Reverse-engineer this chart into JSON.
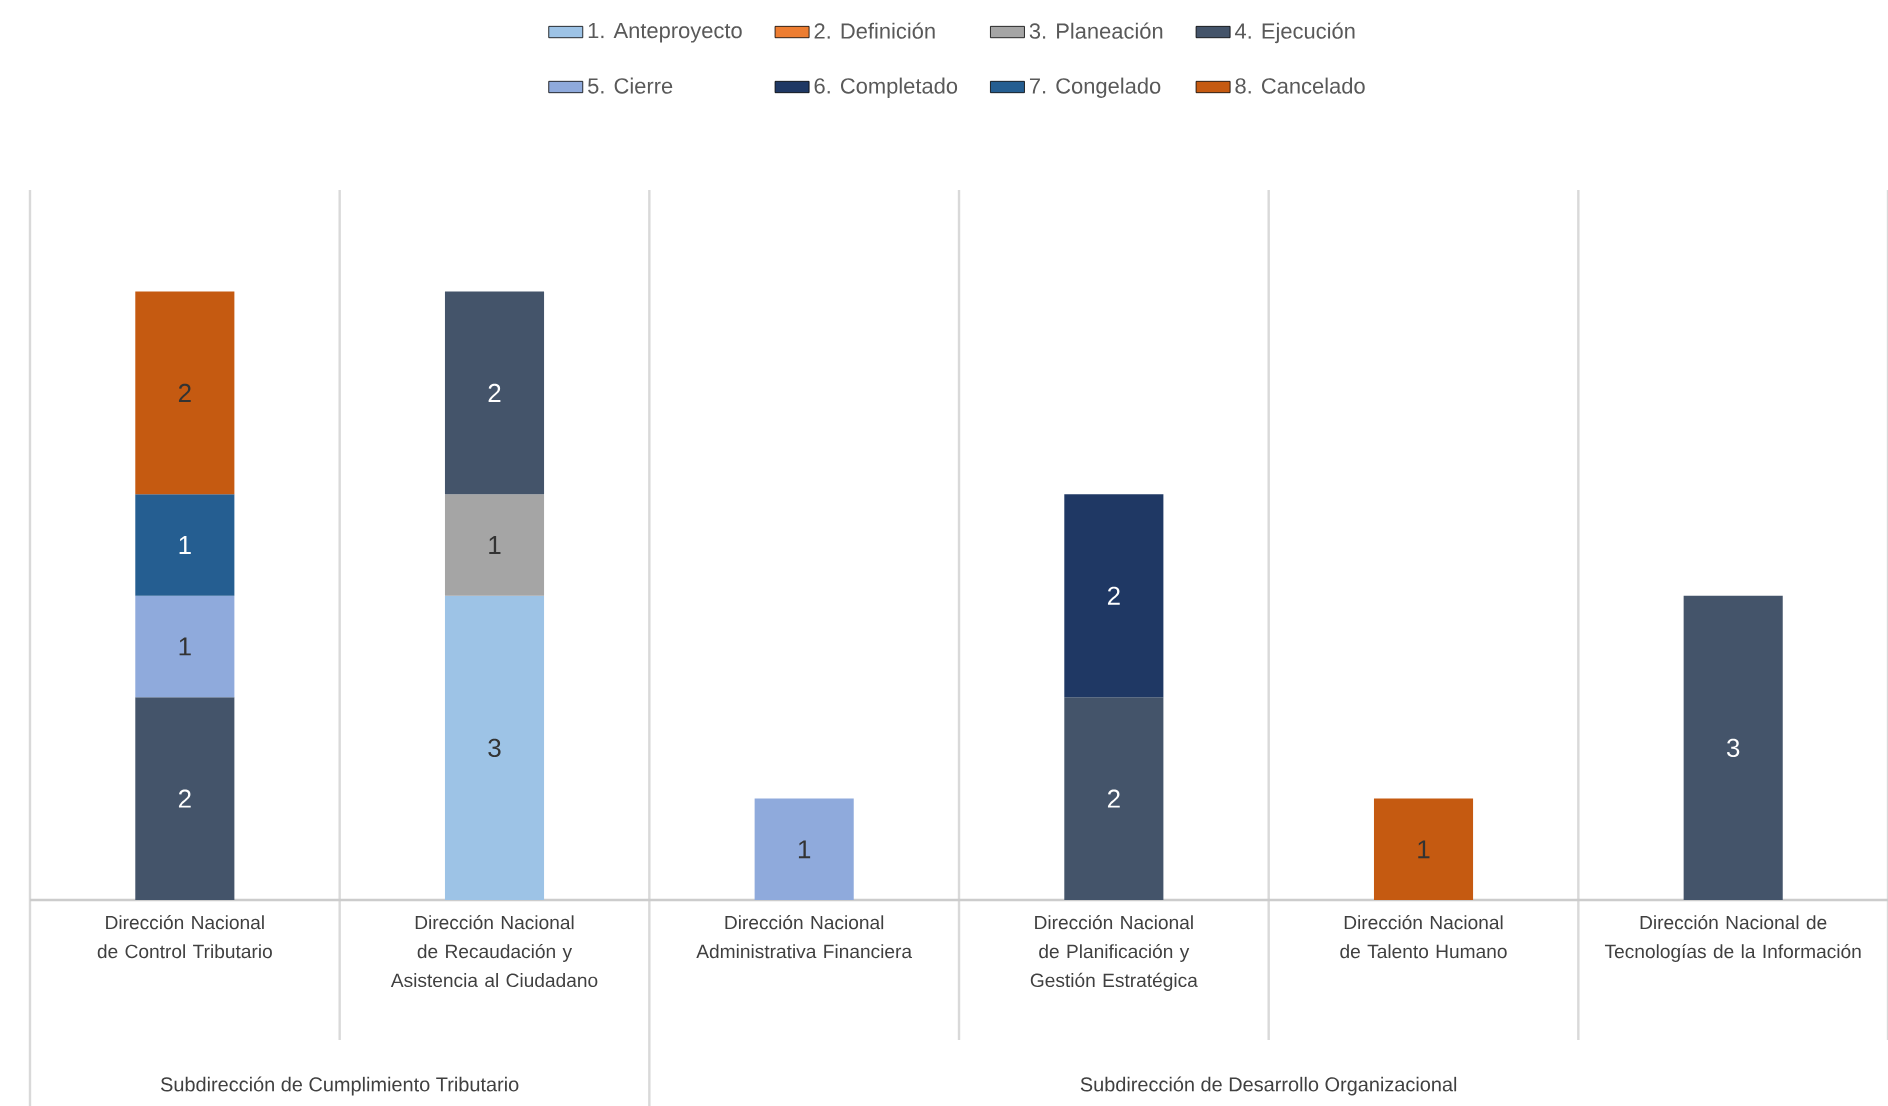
{
  "chart_data": {
    "type": "bar",
    "stacked": true,
    "data_labels": true,
    "grid": "x",
    "legend": "top",
    "tick_labels": "x",
    "ylim": [
      0,
      7
    ],
    "categories": [
      "Dirección Nacional de Control Tributario",
      "Dirección Nacional de Recaudación y Asistencia al Ciudadano",
      "Dirección Nacional Administrativa Financiera",
      "Dirección Nacional de Planificación y Gestión Estratégica",
      "Dirección Nacional de Talento Humano",
      "Dirección Nacional de Tecnologías de la Información"
    ],
    "series": [
      {
        "name": "1. Anteproyecto",
        "color": "#9dc3e6",
        "values": [
          null,
          3,
          null,
          null,
          null,
          null
        ]
      },
      {
        "name": "2. Definición",
        "color": "#ed7d31",
        "values": [
          null,
          null,
          null,
          null,
          null,
          null
        ]
      },
      {
        "name": "3. Planeación",
        "color": "#a5a5a5",
        "values": [
          null,
          1,
          null,
          null,
          null,
          null
        ]
      },
      {
        "name": "4. Ejecución",
        "color": "#44546a",
        "values": [
          2,
          2,
          null,
          2,
          null,
          3
        ]
      },
      {
        "name": "5. Cierre",
        "color": "#8faadc",
        "values": [
          1,
          null,
          1,
          null,
          null,
          null
        ]
      },
      {
        "name": "6. Completado",
        "color": "#1f3864",
        "values": [
          null,
          null,
          null,
          2,
          null,
          null
        ]
      },
      {
        "name": "7. Congelado",
        "color": "#255e91",
        "values": [
          1,
          null,
          null,
          null,
          null,
          null
        ]
      },
      {
        "name": "8. Cancelado",
        "color": "#c55a11",
        "values": [
          2,
          null,
          null,
          null,
          1,
          null
        ]
      }
    ],
    "annotations": [
      "Subdirección de Cumplimiento Tributario",
      "Subdirección de Desarrollo Organizacional"
    ]
  }
}
